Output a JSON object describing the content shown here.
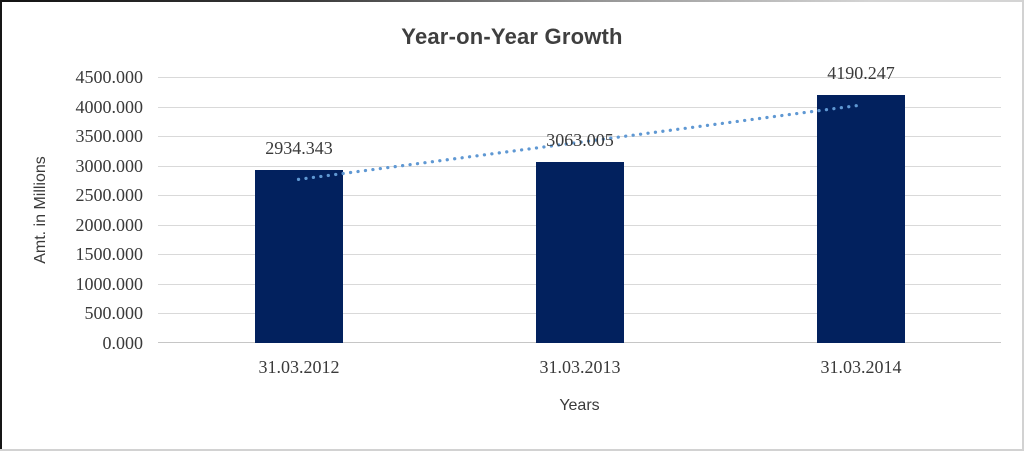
{
  "chart_data": {
    "type": "bar",
    "title": "Year-on-Year Growth",
    "categories": [
      "31.03.2012",
      "31.03.2013",
      "31.03.2014"
    ],
    "values": [
      2934.343,
      3063.005,
      4190.247
    ],
    "data_labels": [
      "2934.343",
      "3063.005",
      "4190.247"
    ],
    "xlabel": "Years",
    "ylabel": "Amt. in Millions",
    "ylim": [
      0,
      4500
    ],
    "ytick_step": 500,
    "ytick_labels": [
      "0.000",
      "500.000",
      "1000.000",
      "1500.000",
      "2000.000",
      "2500.000",
      "3000.000",
      "3500.000",
      "4000.000",
      "4500.000"
    ],
    "grid": true,
    "legend": false,
    "trendline": {
      "type": "linear",
      "style": "dotted",
      "color": "#5F98D3"
    },
    "colors": {
      "bar": "#02215E",
      "gridline": "#D9D9D9",
      "baseline": "#C6C6C6",
      "tick_text": "#3A3A3A",
      "title_text": "#3F3F3F"
    }
  }
}
